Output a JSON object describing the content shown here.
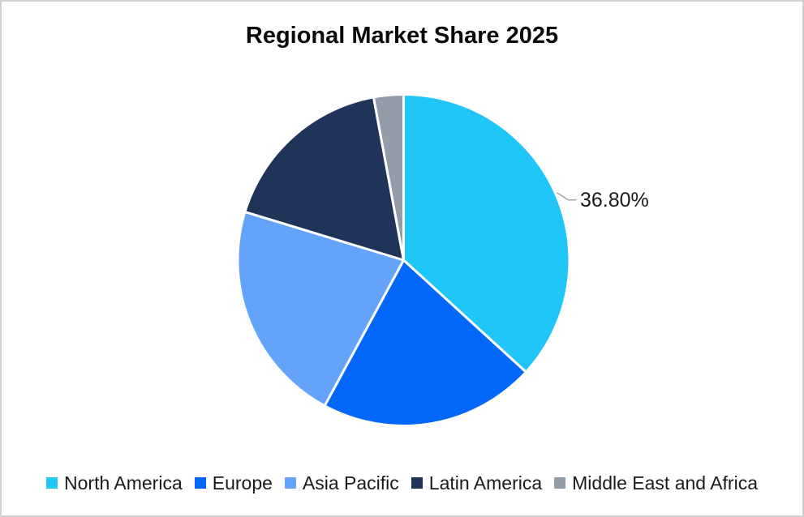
{
  "window": {
    "background": "#FFFFFF",
    "border_color": "#D2D2D2"
  },
  "chart_data": {
    "type": "pie",
    "title": "Regional Market Share 2025",
    "labels": [
      "North America",
      "Europe",
      "Asia Pacific",
      "Latin America",
      "Middle East and Africa"
    ],
    "values": [
      36.8,
      21.1,
      21.8,
      17.4,
      2.9
    ],
    "colors": [
      "#1FC6F7",
      "#0467FB",
      "#63A3F9",
      "#203358",
      "#939CA9"
    ],
    "start_angle_deg": 0,
    "direction": "clockwise",
    "slice_border_color": "#FFFFFF",
    "slice_border_width": 3,
    "leader_line_color": "#A6A6A6",
    "legend_position": "bottom",
    "text_color": "#1A1A1A",
    "data_labels": [
      {
        "slice": "North America",
        "text": "36.80%"
      }
    ]
  }
}
